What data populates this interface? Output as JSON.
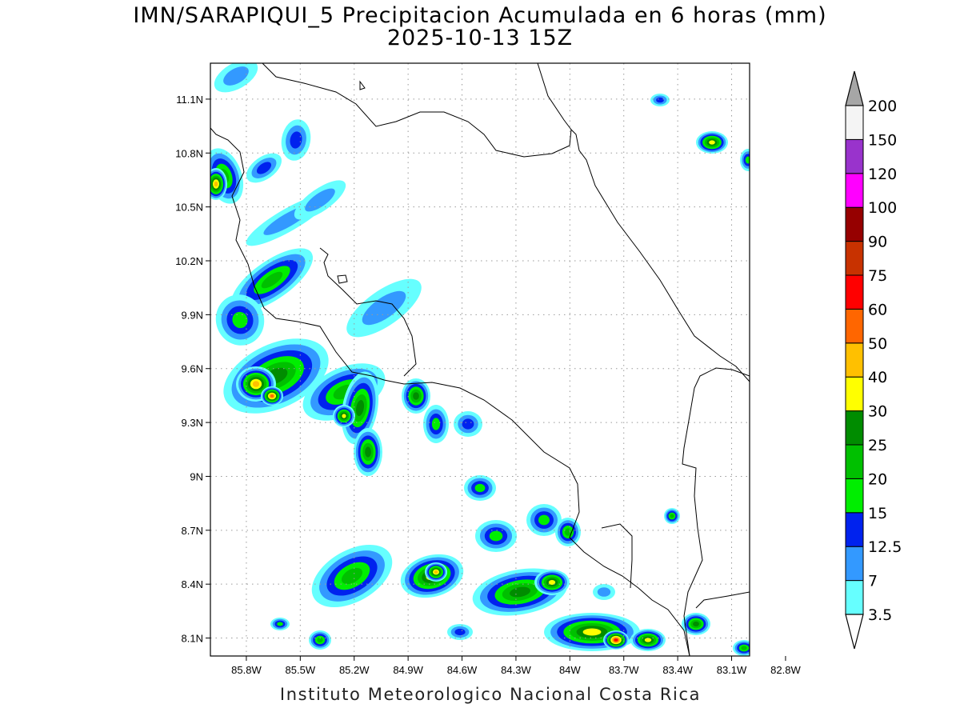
{
  "title": {
    "line1": "IMN/SARAPIQUI_5 Precipitacion Acumulada en 6 horas (mm)",
    "line2": "2025-10-13 15Z"
  },
  "credit": "Instituto Meteorologico Nacional Costa Rica",
  "axes": {
    "lat_ticks": [
      "11.1N",
      "10.8N",
      "10.5N",
      "10.2N",
      "9.9N",
      "9.6N",
      "9.3N",
      "9N",
      "8.7N",
      "8.4N",
      "8.1N"
    ],
    "lon_ticks": [
      "85.8W",
      "85.5W",
      "85.2W",
      "84.9W",
      "84.6W",
      "84.3W",
      "84W",
      "83.7W",
      "83.4W",
      "83.1W",
      "82.8W"
    ],
    "lat_range": [
      8.0,
      11.3
    ],
    "lon_range": [
      -86.0,
      -83.0
    ],
    "grid": "dotted"
  },
  "colorbar": {
    "labels": [
      "3.5",
      "7",
      "12.5",
      "15",
      "20",
      "25",
      "30",
      "40",
      "50",
      "60",
      "75",
      "90",
      "100",
      "120",
      "150",
      "200"
    ],
    "colors": [
      "#66ffff",
      "#3399ff",
      "#0022ee",
      "#00ee00",
      "#00c000",
      "#008c00",
      "#ffff00",
      "#ffc000",
      "#ff6600",
      "#ff0000",
      "#c83200",
      "#960000",
      "#ff00ff",
      "#9933cc",
      "#f4f4f4",
      "#a6a6a6"
    ],
    "overflow_color": "#a6a6a6",
    "underflow_color": "#ffffff"
  }
}
